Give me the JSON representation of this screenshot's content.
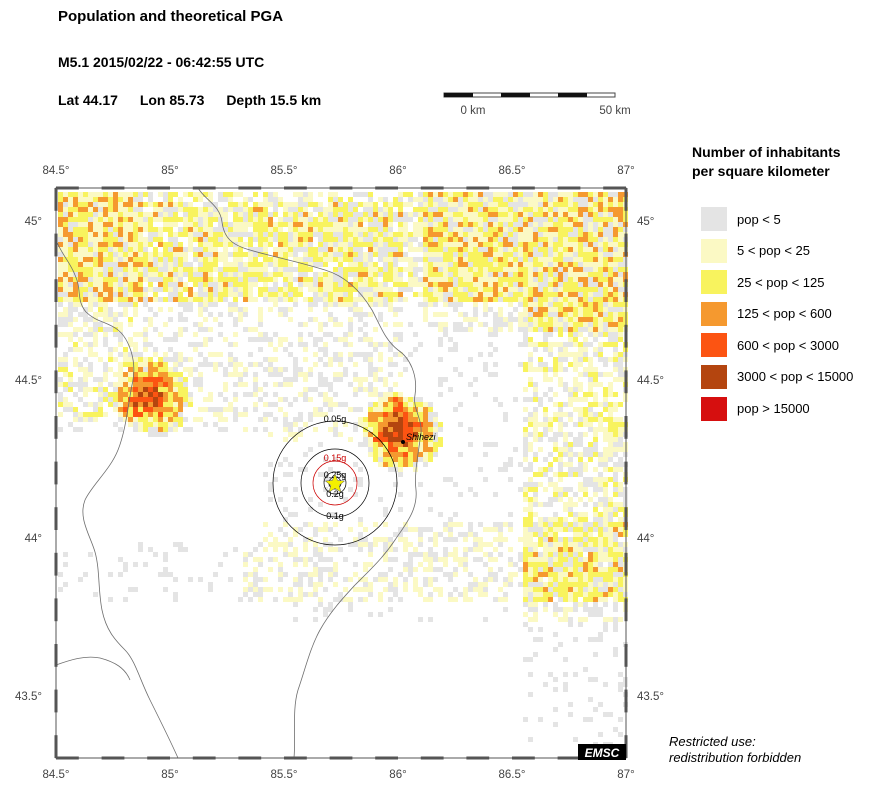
{
  "title": "Population and theoretical PGA",
  "event": "M5.1  2015/02/22 - 06:42:55 UTC",
  "location": {
    "lat": "Lat 44.17",
    "lon": "Lon  85.73",
    "depth": "Depth  15.5 km"
  },
  "scale_bar": {
    "start_label": "0 km",
    "end_label": "50 km"
  },
  "axes": {
    "lon_ticks": [
      "84.5°",
      "85°",
      "85.5°",
      "86°",
      "86.5°",
      "87°"
    ],
    "lat_ticks": [
      "45°",
      "44.5°",
      "44°",
      "43.5°"
    ]
  },
  "epicenter": {
    "lat": 44.17,
    "lon": 85.73
  },
  "city": {
    "name": "Shihezi",
    "lat": 44.3,
    "lon": 86.03
  },
  "pga_contours": [
    {
      "label": "0.05g",
      "color": "#000000"
    },
    {
      "label": "0.1g",
      "color": "#000000"
    },
    {
      "label": "0.15g",
      "color": "#cc0000"
    },
    {
      "label": "0.2g",
      "color": "#000000"
    },
    {
      "label": "0.25g",
      "color": "#000000"
    }
  ],
  "legend": {
    "title_line1": "Number of inhabitants",
    "title_line2": "per square kilometer",
    "items": [
      {
        "label": "pop < 5",
        "color": "#e4e4e4"
      },
      {
        "label": "5 < pop < 25",
        "color": "#fbf9c4"
      },
      {
        "label": "25 < pop < 125",
        "color": "#f8f35e"
      },
      {
        "label": "125 < pop < 600",
        "color": "#f5992f"
      },
      {
        "label": "600 < pop < 3000",
        "color": "#fc5412"
      },
      {
        "label": "3000 < pop < 15000",
        "color": "#b4450f"
      },
      {
        "label": "pop > 15000",
        "color": "#d60f0f"
      }
    ]
  },
  "logo": "EMSC",
  "restricted_line1": "Restricted use:",
  "restricted_line2": "redistribution forbidden"
}
